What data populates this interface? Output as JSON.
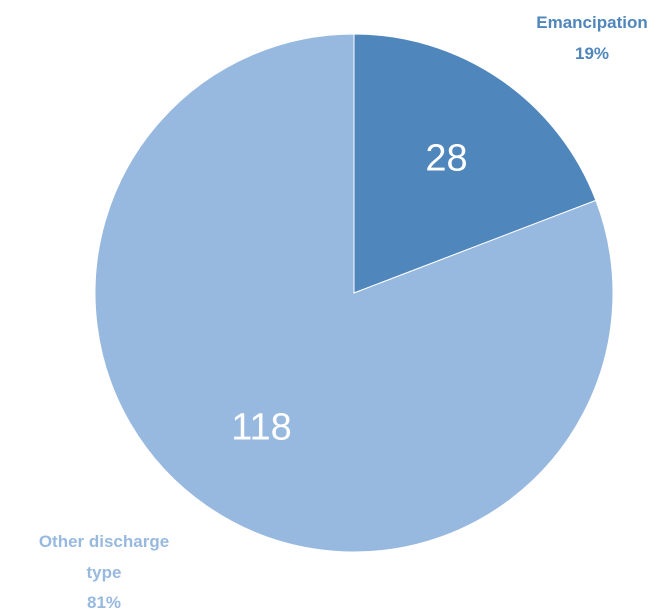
{
  "chart_data": {
    "type": "pie",
    "slices": [
      {
        "label_lines": [
          "Emancipation"
        ],
        "value": 28,
        "value_label": "28",
        "percent_label": "19%",
        "color": "#4f86bc",
        "label_color": "#4f86bc"
      },
      {
        "label_lines": [
          "Other discharge",
          "type"
        ],
        "value": 118,
        "value_label": "118",
        "percent_label": "81%",
        "color": "#98b9df",
        "label_color": "#98b9df"
      }
    ],
    "start_angle_deg": 0,
    "direction": "clockwise"
  }
}
